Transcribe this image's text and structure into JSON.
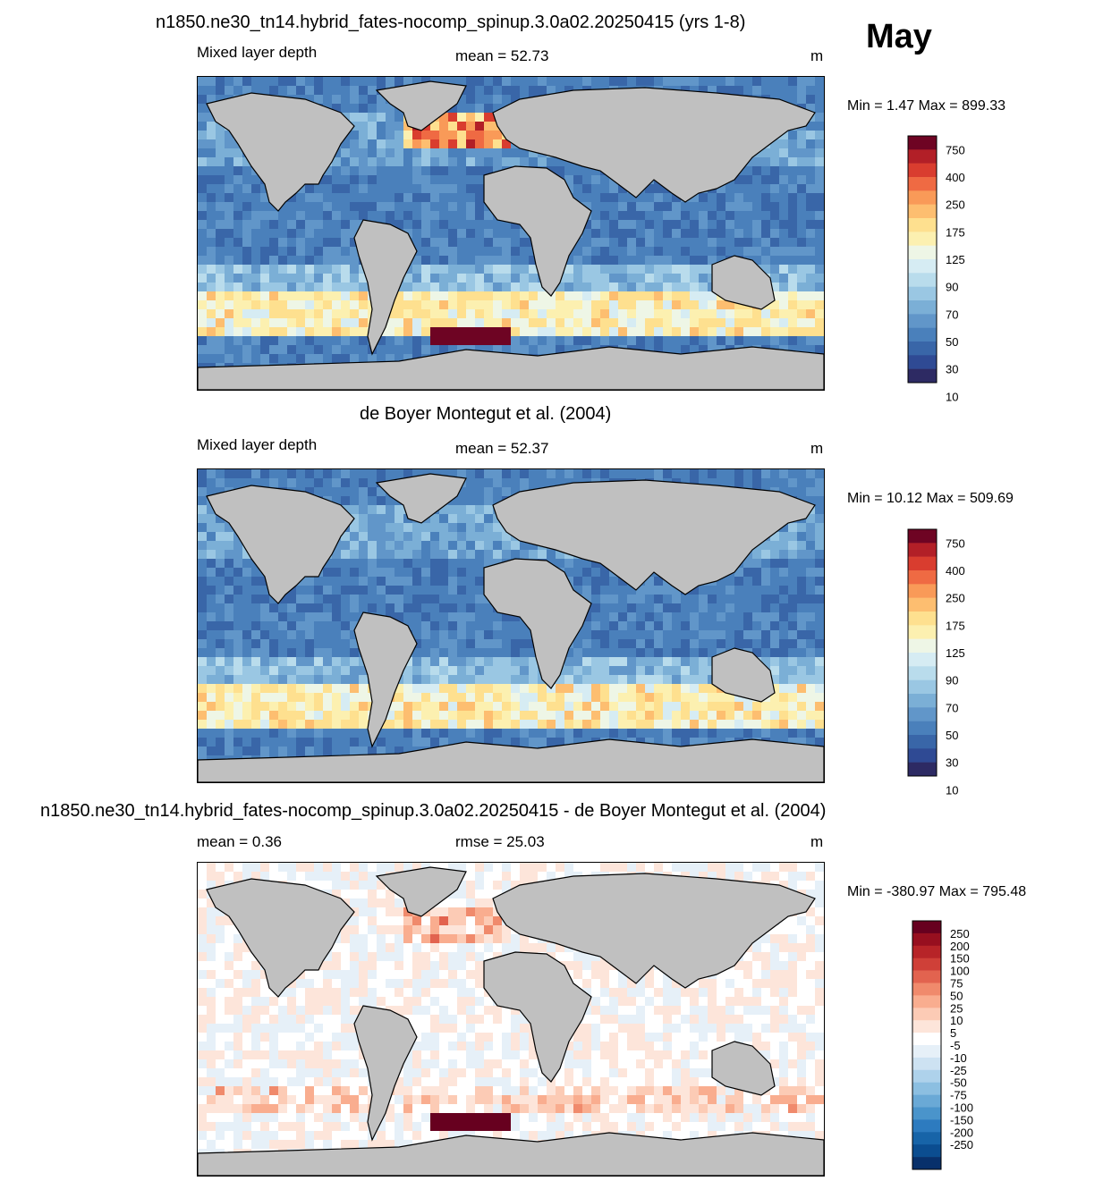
{
  "header": {
    "month": "May"
  },
  "panels": [
    {
      "title": "n1850.ne30_tn14.hybrid_fates-nocomp_spinup.3.0a02.20250415 (yrs 1-8)",
      "left_label": "Mixed layer depth",
      "center_label": "mean =  52.73",
      "units": "m",
      "minmax": "Min =   1.47 Max = 899.33"
    },
    {
      "title": "de Boyer Montegut et al. (2004)",
      "left_label": "Mixed layer depth",
      "center_label": "mean =  52.37",
      "units": "m",
      "minmax": "Min =  10.12 Max = 509.69"
    },
    {
      "title": "n1850.ne30_tn14.hybrid_fates-nocomp_spinup.3.0a02.20250415 - de Boyer Montegut et al. (2004)",
      "left_label": "mean =   0.36",
      "center_label": "rmse =  25.03",
      "units": "m",
      "minmax": "Min = -380.97 Max = 795.48"
    }
  ],
  "colors": {
    "land": "#c0c0c0",
    "mld_scale": [
      "#2d2a63",
      "#2f4a94",
      "#3966a8",
      "#4a80bb",
      "#6196c9",
      "#7bafd6",
      "#9ac7e3",
      "#b9dcec",
      "#d6ecf3",
      "#eef6e6",
      "#fcf0b0",
      "#fee08f",
      "#fdbe70",
      "#f99a58",
      "#ef6a43",
      "#d93d2f",
      "#b21f27",
      "#6e0423"
    ],
    "diff_scale": [
      "#08306b",
      "#0b4d90",
      "#1764a8",
      "#2d7bbf",
      "#4a94cb",
      "#6aa9d6",
      "#8cbfe1",
      "#aed2eb",
      "#cde2f2",
      "#e6f0f8",
      "#ffffff",
      "#fde5da",
      "#fccbb5",
      "#f9ad8f",
      "#f08a6c",
      "#e2634f",
      "#cf4038",
      "#b72428",
      "#970f1f",
      "#67001f"
    ]
  },
  "chart_data": [
    {
      "type": "heatmap",
      "title": "n1850.ne30_tn14.hybrid_fates-nocomp_spinup.3.0a02.20250415 (yrs 1-8)",
      "variable": "Mixed layer depth",
      "units": "m",
      "mean": 52.73,
      "min": 1.47,
      "max": 899.33,
      "colorbar_ticks": [
        "750",
        "400",
        "250",
        "175",
        "125",
        "90",
        "70",
        "50",
        "30",
        "10"
      ]
    },
    {
      "type": "heatmap",
      "title": "de Boyer Montegut et al. (2004)",
      "variable": "Mixed layer depth",
      "units": "m",
      "mean": 52.37,
      "min": 10.12,
      "max": 509.69,
      "colorbar_ticks": [
        "750",
        "400",
        "250",
        "175",
        "125",
        "90",
        "70",
        "50",
        "30",
        "10"
      ]
    },
    {
      "type": "heatmap",
      "title": "n1850.ne30_tn14.hybrid_fates-nocomp_spinup.3.0a02.20250415 - de Boyer Montegut et al. (2004)",
      "units": "m",
      "mean": 0.36,
      "rmse": 25.03,
      "min": -380.97,
      "max": 795.48,
      "colorbar_ticks": [
        "250",
        "200",
        "150",
        "100",
        "75",
        "50",
        "25",
        "10",
        "5",
        "-5",
        "-10",
        "-25",
        "-50",
        "-75",
        "-100",
        "-150",
        "-200",
        "-250"
      ]
    }
  ]
}
